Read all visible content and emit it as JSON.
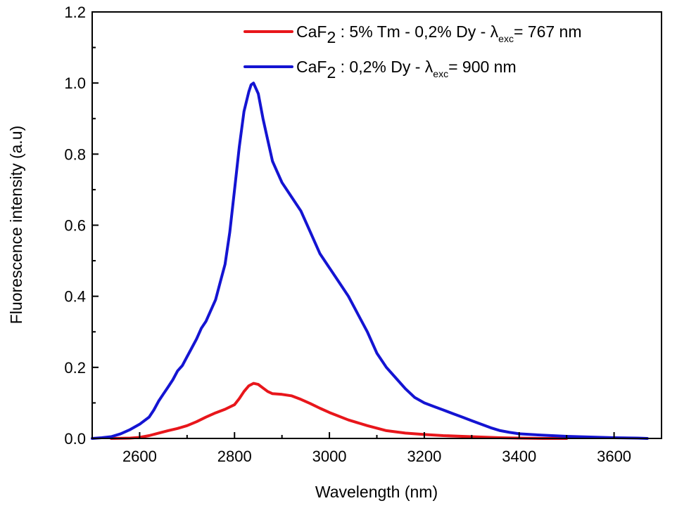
{
  "chart_data": {
    "type": "line",
    "title": "",
    "xlabel": "Wavelength (nm)",
    "ylabel": "Fluorescence intensity (a.u)",
    "xlim": [
      2500,
      3700
    ],
    "ylim": [
      0.0,
      1.2
    ],
    "xticks": [
      2600,
      2800,
      3000,
      3200,
      3400,
      3600
    ],
    "yticks": [
      0.0,
      0.2,
      0.4,
      0.6,
      0.8,
      1.0,
      1.2
    ],
    "xtick_labels": [
      "2600",
      "2800",
      "3000",
      "3200",
      "3400",
      "3600"
    ],
    "ytick_labels": [
      "0.0",
      "0.2",
      "0.4",
      "0.6",
      "0.8",
      "1.0",
      "1.2"
    ],
    "grid": false,
    "legend_position": "top-right",
    "series": [
      {
        "legend": {
          "base": "CaF",
          "sub": "2",
          "mid": " : 5% Tm - 0,2% Dy - λ",
          "exc": "exc",
          "tail": "= 767 nm"
        },
        "color": "#e8161b",
        "x": [
          2540,
          2580,
          2600,
          2620,
          2640,
          2660,
          2680,
          2700,
          2720,
          2740,
          2760,
          2780,
          2800,
          2810,
          2820,
          2830,
          2840,
          2850,
          2860,
          2870,
          2880,
          2900,
          2920,
          2940,
          2960,
          2980,
          3000,
          3040,
          3080,
          3120,
          3160,
          3200,
          3240,
          3280,
          3320,
          3360,
          3400,
          3450,
          3500
        ],
        "y": [
          0.0,
          0.001,
          0.003,
          0.008,
          0.015,
          0.022,
          0.028,
          0.036,
          0.047,
          0.06,
          0.072,
          0.082,
          0.095,
          0.112,
          0.132,
          0.148,
          0.155,
          0.152,
          0.142,
          0.132,
          0.126,
          0.124,
          0.12,
          0.11,
          0.098,
          0.085,
          0.073,
          0.052,
          0.036,
          0.022,
          0.015,
          0.011,
          0.008,
          0.006,
          0.004,
          0.002,
          0.001,
          0.0,
          0.0
        ]
      },
      {
        "legend": {
          "base": "CaF",
          "sub": "2",
          "mid": " : 0,2% Dy - λ",
          "exc": "exc",
          "tail": "= 900 nm"
        },
        "color": "#1414d2",
        "x": [
          2500,
          2520,
          2540,
          2560,
          2580,
          2600,
          2620,
          2630,
          2640,
          2650,
          2660,
          2670,
          2680,
          2690,
          2700,
          2710,
          2720,
          2730,
          2740,
          2750,
          2760,
          2770,
          2780,
          2790,
          2800,
          2810,
          2820,
          2830,
          2835,
          2840,
          2850,
          2860,
          2870,
          2880,
          2890,
          2900,
          2920,
          2940,
          2960,
          2980,
          3000,
          3020,
          3040,
          3060,
          3080,
          3100,
          3120,
          3140,
          3160,
          3180,
          3200,
          3220,
          3240,
          3260,
          3280,
          3300,
          3320,
          3340,
          3360,
          3380,
          3400,
          3450,
          3500,
          3550,
          3600,
          3650,
          3670
        ],
        "y": [
          0.0,
          0.002,
          0.005,
          0.013,
          0.025,
          0.04,
          0.06,
          0.08,
          0.105,
          0.125,
          0.145,
          0.165,
          0.19,
          0.205,
          0.23,
          0.255,
          0.28,
          0.31,
          0.33,
          0.36,
          0.39,
          0.44,
          0.49,
          0.58,
          0.7,
          0.82,
          0.92,
          0.975,
          0.995,
          1.0,
          0.97,
          0.9,
          0.84,
          0.78,
          0.75,
          0.72,
          0.68,
          0.64,
          0.58,
          0.52,
          0.48,
          0.44,
          0.4,
          0.35,
          0.3,
          0.24,
          0.2,
          0.17,
          0.14,
          0.115,
          0.1,
          0.09,
          0.08,
          0.07,
          0.06,
          0.05,
          0.04,
          0.03,
          0.022,
          0.017,
          0.013,
          0.009,
          0.006,
          0.004,
          0.002,
          0.001,
          0.0
        ]
      }
    ]
  }
}
